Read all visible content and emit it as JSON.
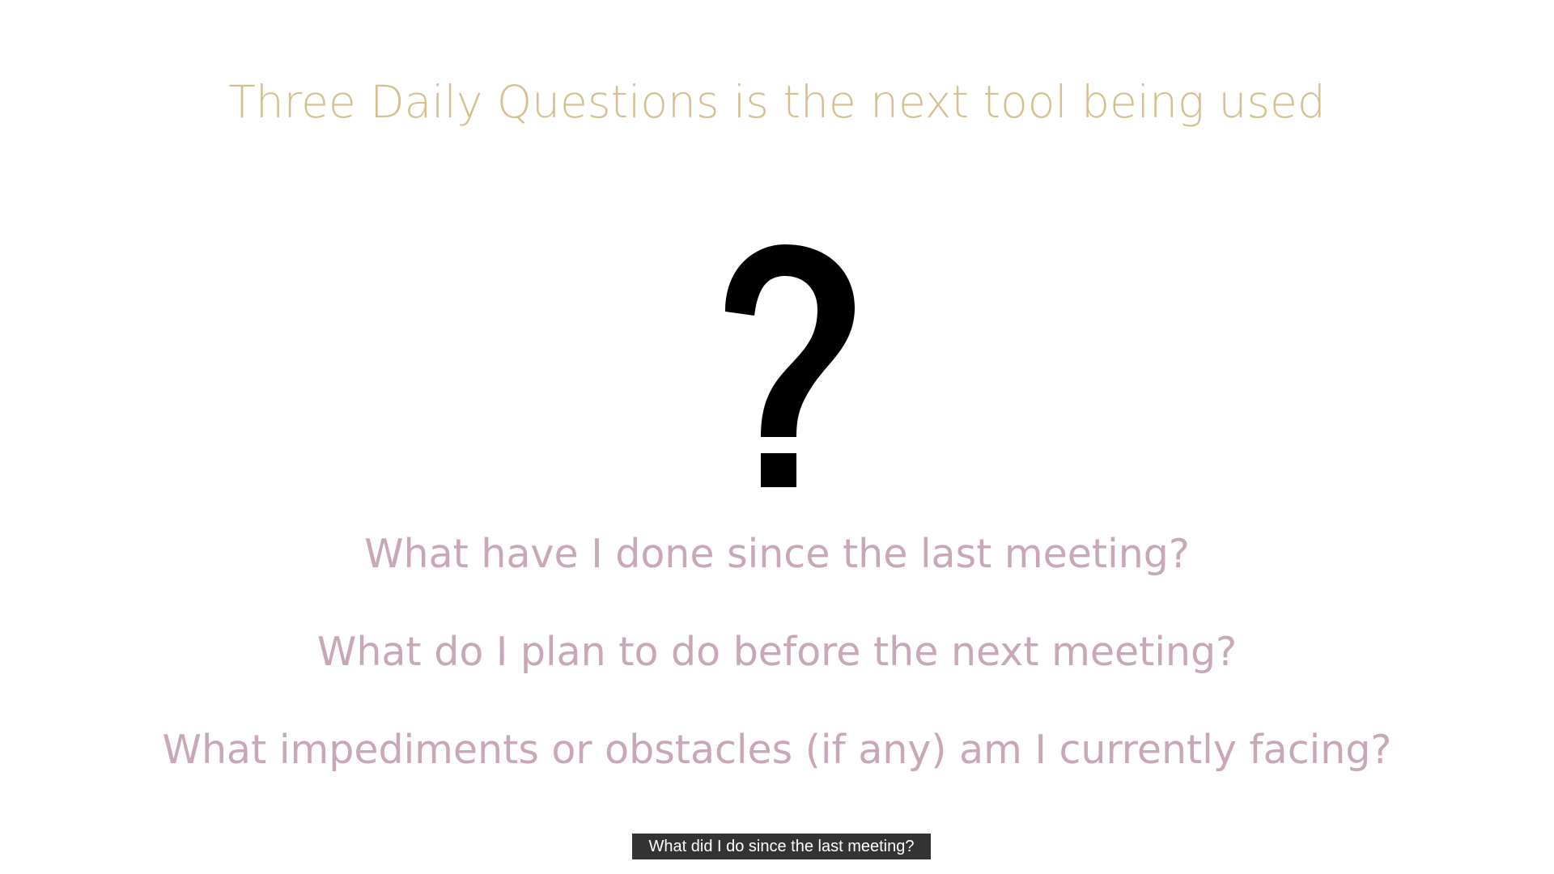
{
  "slide": {
    "title": "Three Daily Questions is the next tool being used",
    "center_icon": "question-mark-icon",
    "questions": [
      "What have I done since the last meeting?",
      "What do I plan to do before the next meeting?",
      "What impediments or obstacles (if any) am I currently facing?"
    ]
  },
  "caption": {
    "text": "What did I do since the last meeting?"
  },
  "colors": {
    "title": "#d5bf8e",
    "questions": "#c8a7b8",
    "caption_bg": "#333333",
    "caption_text": "#ffffff",
    "icon": "#000000"
  }
}
